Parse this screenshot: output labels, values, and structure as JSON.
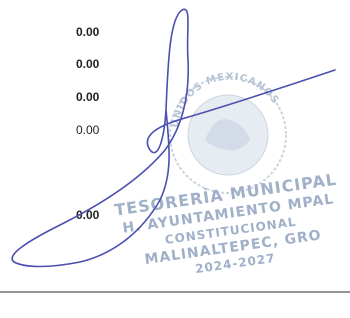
{
  "amounts": [
    {
      "text": "0.00",
      "bold": true
    },
    {
      "text": "0.00",
      "bold": true
    },
    {
      "text": "0.00",
      "bold": true
    },
    {
      "text": "0.00",
      "bold": false
    },
    {
      "text": "0.00",
      "bold": true
    }
  ],
  "stamp": {
    "seal_text": "UNIDOS MEXICANOS",
    "lines": [
      "TESORERÍA MUNICIPAL",
      "H. AYUNTAMIENTO MPAL",
      "CONSTITUCIONAL",
      "MALINALTEPEC, GRO",
      "2024-2027"
    ]
  }
}
